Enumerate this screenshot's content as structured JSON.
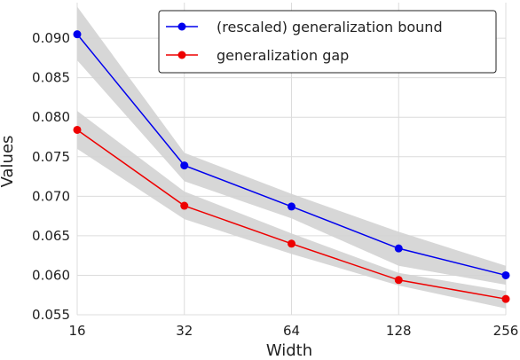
{
  "chart_data": {
    "type": "line",
    "title": "",
    "xlabel": "Width",
    "ylabel": "Values",
    "x": [
      16,
      32,
      64,
      128,
      256
    ],
    "x_tick_labels": [
      "16",
      "32",
      "64",
      "128",
      "256"
    ],
    "x_scale": "log2",
    "y_ticks": [
      0.055,
      0.06,
      0.065,
      0.07,
      0.075,
      0.08,
      0.085,
      0.09
    ],
    "y_tick_labels": [
      "0.055",
      "0.060",
      "0.065",
      "0.070",
      "0.075",
      "0.080",
      "0.085",
      "0.090"
    ],
    "ylim": [
      0.055,
      0.0945
    ],
    "grid": true,
    "legend_position": "top-right",
    "series": [
      {
        "name": "(rescaled) generalization bound",
        "color": "#0000ee",
        "values": [
          0.0905,
          0.0739,
          0.0687,
          0.0634,
          0.06
        ],
        "band_lower": [
          0.0872,
          0.0719,
          0.0672,
          0.0612,
          0.0588
        ],
        "band_upper": [
          0.094,
          0.0755,
          0.0703,
          0.0655,
          0.0612
        ]
      },
      {
        "name": "generalization gap",
        "color": "#ee0000",
        "values": [
          0.0784,
          0.0688,
          0.064,
          0.0594,
          0.057
        ],
        "band_lower": [
          0.076,
          0.0671,
          0.0627,
          0.0587,
          0.0558
        ],
        "band_upper": [
          0.0808,
          0.0706,
          0.0653,
          0.0603,
          0.058
        ]
      }
    ],
    "band_color": "#d3d3d3"
  }
}
